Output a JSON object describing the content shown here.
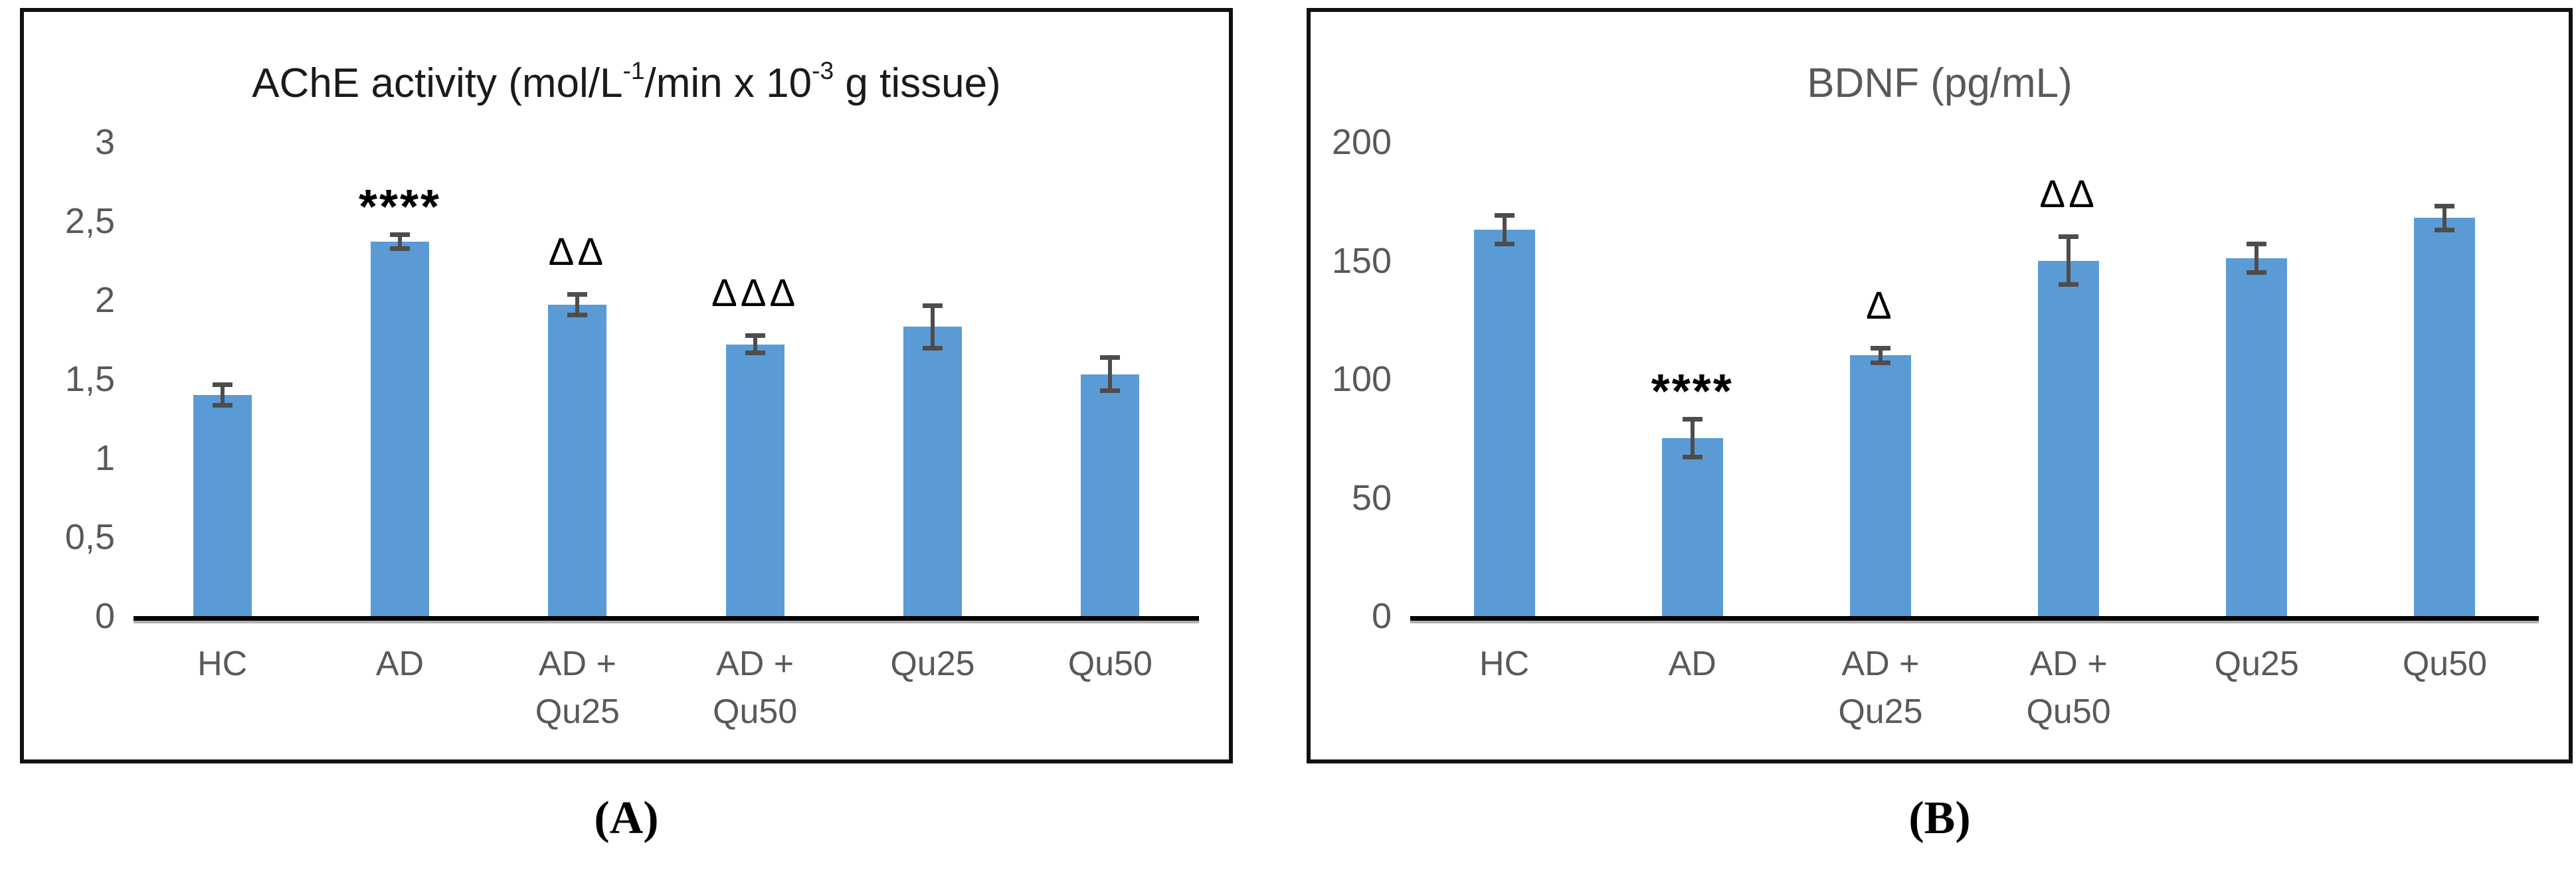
{
  "figure": {
    "background": "#ffffff",
    "panel_border_color": "#111111"
  },
  "colors": {
    "bar_fill": "#5b9bd5",
    "error_bar": "#4d4d4d",
    "axis_line": "#000000",
    "tick_label": "#595959",
    "title_a": "#1a1a1a",
    "title_b": "#595959",
    "annotation": "#000000"
  },
  "captions": {
    "a": "(A)",
    "b": "(B)"
  },
  "chart_data": [
    {
      "type": "bar",
      "panel": "A",
      "title": "AChE activity (mol/L-1/min x 10-3 g tissue)",
      "title_parts": [
        {
          "text": "AChE activity (mol/L"
        },
        {
          "text": "-1",
          "sup": true
        },
        {
          "text": "/min x 10"
        },
        {
          "text": "-3",
          "sup": true
        },
        {
          "text": " g tissue)"
        }
      ],
      "xlabel": "",
      "ylabel": "",
      "ylim": [
        0,
        3
      ],
      "grid": false,
      "legend": "none",
      "decimal_separator": ",",
      "yticks": [
        {
          "value": 0,
          "label": "0"
        },
        {
          "value": 0.5,
          "label": "0,5"
        },
        {
          "value": 1,
          "label": "1"
        },
        {
          "value": 1.5,
          "label": "1,5"
        },
        {
          "value": 2,
          "label": "2"
        },
        {
          "value": 2.5,
          "label": "2,5"
        },
        {
          "value": 3,
          "label": "3"
        }
      ],
      "categories": [
        "HC",
        "AD",
        "AD + Qu25",
        "AD + Qu50",
        "Qu25",
        "Qu50"
      ],
      "category_label_lines": [
        [
          "HC"
        ],
        [
          "AD"
        ],
        [
          "AD +",
          "Qu25"
        ],
        [
          "AD +",
          "Qu50"
        ],
        [
          "Qu25"
        ],
        [
          "Qu50"
        ]
      ],
      "values": [
        1.4,
        2.37,
        1.97,
        1.72,
        1.83,
        1.53
      ],
      "errors": [
        0.08,
        0.06,
        0.08,
        0.07,
        0.15,
        0.12
      ],
      "annotations": [
        "",
        "****",
        "ΔΔ",
        "ΔΔΔ",
        "",
        ""
      ]
    },
    {
      "type": "bar",
      "panel": "B",
      "title": "BDNF (pg/mL)",
      "xlabel": "",
      "ylabel": "",
      "ylim": [
        0,
        200
      ],
      "grid": false,
      "legend": "none",
      "yticks": [
        {
          "value": 0,
          "label": "0"
        },
        {
          "value": 50,
          "label": "50"
        },
        {
          "value": 100,
          "label": "100"
        },
        {
          "value": 150,
          "label": "150"
        },
        {
          "value": 200,
          "label": "200"
        }
      ],
      "categories": [
        "HC",
        "AD",
        "AD + Qu25",
        "AD + Qu50",
        "Qu25",
        "Qu50"
      ],
      "category_label_lines": [
        [
          "HC"
        ],
        [
          "AD"
        ],
        [
          "AD +",
          "Qu25"
        ],
        [
          "AD +",
          "Qu50"
        ],
        [
          "Qu25"
        ],
        [
          "Qu50"
        ]
      ],
      "values": [
        163,
        75,
        110,
        150,
        151,
        168
      ],
      "errors": [
        7,
        9,
        4,
        11,
        7,
        6
      ],
      "annotations": [
        "",
        "****",
        "Δ",
        "ΔΔ",
        "",
        ""
      ]
    }
  ]
}
